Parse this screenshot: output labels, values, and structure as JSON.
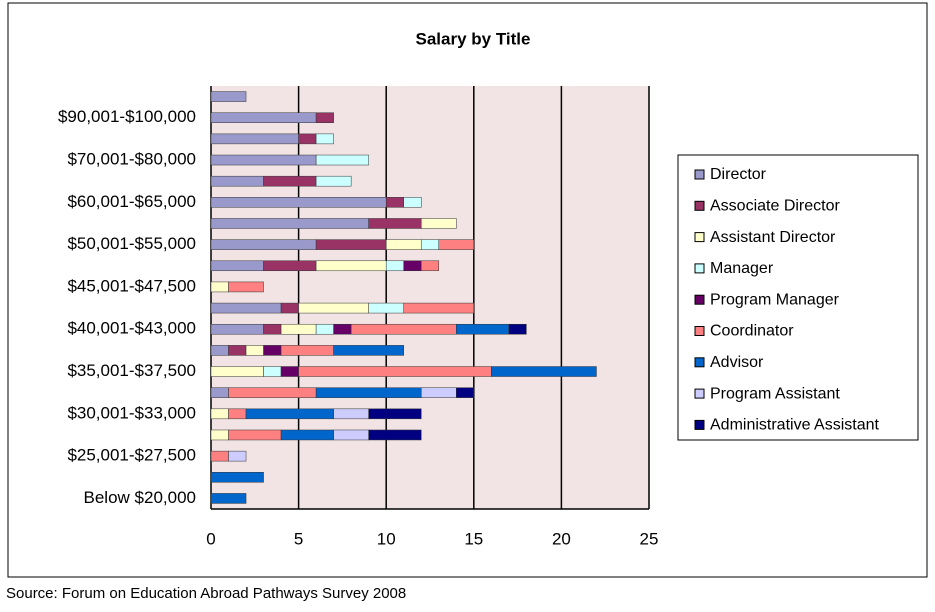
{
  "chart_data": {
    "type": "stacked-barh",
    "title": "Salary by Title",
    "source": "Source: Forum on Education Abroad Pathways Survey 2008",
    "categories": [
      "Below $20,000",
      null,
      "$25,001-$27,500",
      null,
      "$30,001-$33,000",
      null,
      "$35,001-$37,500",
      null,
      "$40,001-$43,000",
      null,
      "$45,001-$47,500",
      null,
      "$50,001-$55,000",
      null,
      "$60,001-$65,000",
      null,
      "$70,001-$80,000",
      null,
      "$90,001-$100,000",
      null
    ],
    "series": [
      {
        "name": "Director",
        "color": "#9999cc",
        "values": [
          0,
          0,
          0,
          0,
          0,
          1,
          0,
          1,
          3,
          4,
          0,
          3,
          6,
          9,
          10,
          3,
          6,
          5,
          6,
          2
        ]
      },
      {
        "name": "Associate Director",
        "color": "#993366",
        "values": [
          0,
          0,
          0,
          0,
          0,
          0,
          0,
          1,
          1,
          1,
          0,
          3,
          4,
          3,
          1,
          3,
          0,
          1,
          1,
          0
        ]
      },
      {
        "name": "Assistant Director",
        "color": "#ffffcc",
        "values": [
          0,
          0,
          0,
          1,
          1,
          0,
          3,
          1,
          2,
          4,
          1,
          4,
          2,
          2,
          0,
          0,
          0,
          0,
          0,
          0
        ]
      },
      {
        "name": "Manager",
        "color": "#ccffff",
        "values": [
          0,
          0,
          0,
          0,
          0,
          0,
          1,
          0,
          1,
          2,
          0,
          1,
          1,
          0,
          1,
          2,
          3,
          1,
          0,
          0
        ]
      },
      {
        "name": "Program Manager",
        "color": "#660066",
        "values": [
          0,
          0,
          0,
          0,
          0,
          0,
          1,
          1,
          1,
          0,
          0,
          1,
          0,
          0,
          0,
          0,
          0,
          0,
          0,
          0
        ]
      },
      {
        "name": "Coordinator",
        "color": "#ff8080",
        "values": [
          0,
          0,
          1,
          3,
          1,
          5,
          11,
          3,
          6,
          4,
          2,
          1,
          2,
          0,
          0,
          0,
          0,
          0,
          0,
          0
        ]
      },
      {
        "name": "Advisor",
        "color": "#0066cc",
        "values": [
          2,
          3,
          0,
          3,
          5,
          6,
          6,
          4,
          3,
          0,
          0,
          0,
          0,
          0,
          0,
          0,
          0,
          0,
          0,
          0
        ]
      },
      {
        "name": "Program Assistant",
        "color": "#ccccff",
        "values": [
          0,
          0,
          1,
          2,
          2,
          2,
          0,
          0,
          0,
          0,
          0,
          0,
          0,
          0,
          0,
          0,
          0,
          0,
          0,
          0
        ]
      },
      {
        "name": "Administrative Assistant",
        "color": "#000080",
        "values": [
          0,
          0,
          0,
          3,
          3,
          1,
          0,
          0,
          1,
          0,
          0,
          0,
          0,
          0,
          0,
          0,
          0,
          0,
          0,
          0
        ]
      }
    ],
    "xlim": [
      0,
      25
    ],
    "xticks": [
      0,
      5,
      10,
      15,
      20,
      25
    ],
    "grid": true,
    "legend": "right"
  }
}
